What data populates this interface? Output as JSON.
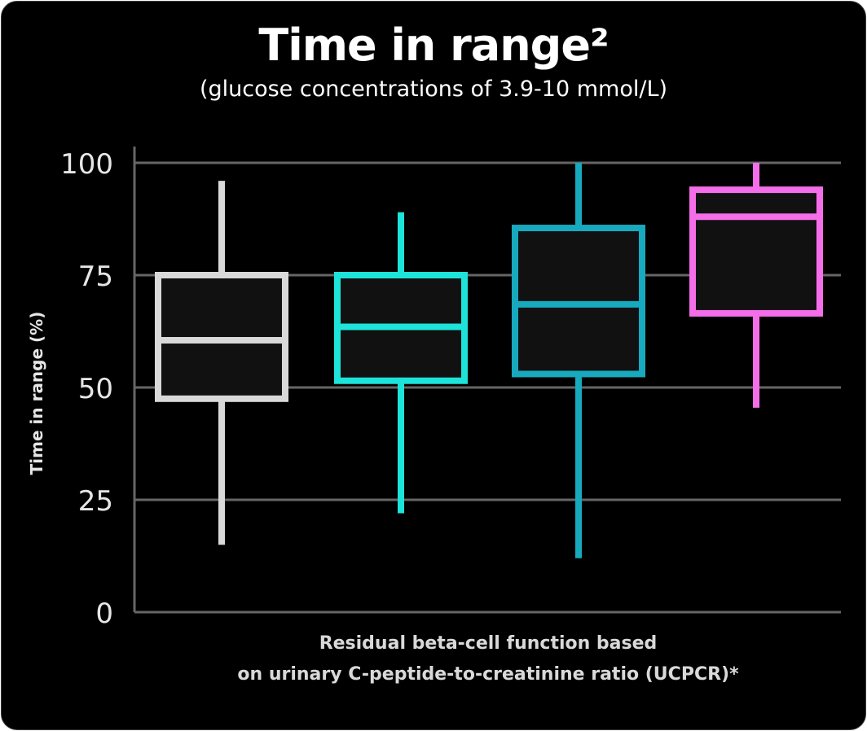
{
  "chart_data": {
    "type": "box",
    "title": "Time in range²",
    "subtitle": "(glucose concentrations of 3.9-10 mmol/L)",
    "ylabel": "Time in range (%)",
    "xlabel_lines": [
      "Residual beta-cell function based",
      "on urinary C-peptide-to-creatinine ratio (UCPCR)*"
    ],
    "ylim": [
      0,
      100
    ],
    "yticks": [
      0,
      25,
      50,
      75,
      100
    ],
    "grid": true,
    "series": [
      {
        "color": "#d9d9d9",
        "min": 15,
        "q1": 47.5,
        "median": 60.5,
        "q3": 75,
        "max": 96
      },
      {
        "color": "#1de3d8",
        "min": 22,
        "q1": 51.5,
        "median": 63.5,
        "q3": 75,
        "max": 89
      },
      {
        "color": "#17a9bd",
        "min": 12,
        "q1": 53,
        "median": 68.5,
        "q3": 85.5,
        "max": 100
      },
      {
        "color": "#f56ee9",
        "min": 45.5,
        "q1": 66.5,
        "median": 88,
        "q3": 94,
        "max": 100
      }
    ],
    "colors": {
      "background": "#000000",
      "box_fill": "#111111",
      "grid": "#666666",
      "text": "#ffffff"
    }
  }
}
